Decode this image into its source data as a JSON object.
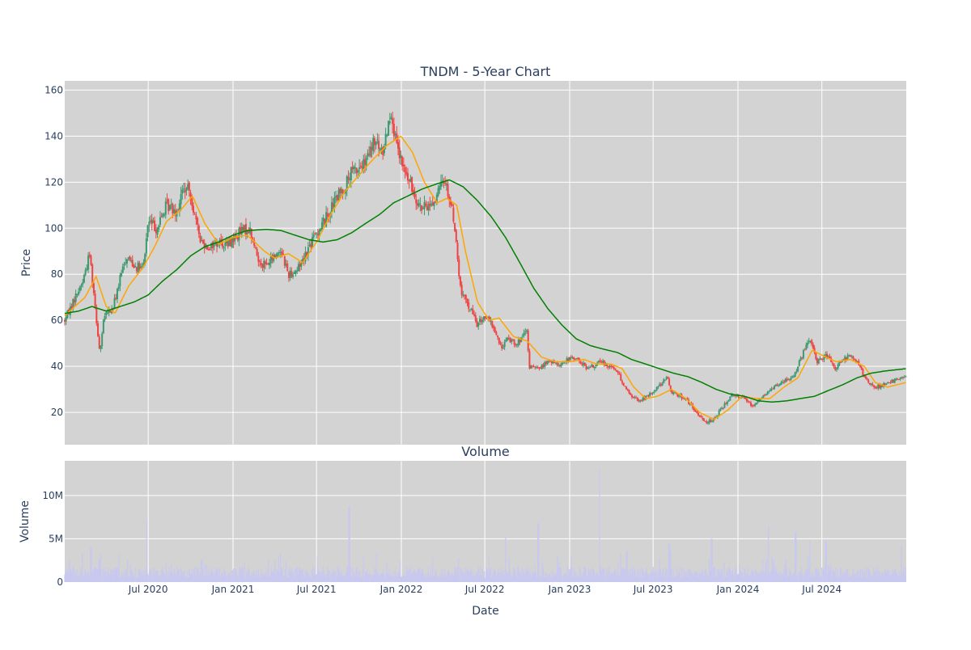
{
  "chart_data": [
    {
      "type": "candlestick",
      "title": "TNDM - 5-Year Chart",
      "ylabel": "Price",
      "ylim": [
        6,
        164
      ],
      "yticks": [
        20,
        40,
        60,
        80,
        100,
        120,
        140,
        160
      ],
      "xrange": [
        "2020-01-02",
        "2024-12-31"
      ],
      "grid": true,
      "legend": "none",
      "colors": {
        "up": "#3d9970",
        "down": "#ef4444",
        "sma50": "#ffa500",
        "sma200": "#008000",
        "plot_bg": "#d3d3d3"
      },
      "price_anchors": [
        [
          "2020-01-02",
          60
        ],
        [
          "2020-01-20",
          68
        ],
        [
          "2020-02-10",
          77
        ],
        [
          "2020-02-25",
          89
        ],
        [
          "2020-03-05",
          72
        ],
        [
          "2020-03-18",
          46
        ],
        [
          "2020-03-28",
          62
        ],
        [
          "2020-04-15",
          65
        ],
        [
          "2020-05-01",
          78
        ],
        [
          "2020-05-15",
          88
        ],
        [
          "2020-06-01",
          84
        ],
        [
          "2020-06-20",
          82
        ],
        [
          "2020-07-01",
          103
        ],
        [
          "2020-07-20",
          100
        ],
        [
          "2020-08-10",
          110
        ],
        [
          "2020-09-01",
          108
        ],
        [
          "2020-09-15",
          117
        ],
        [
          "2020-09-30",
          116
        ],
        [
          "2020-10-15",
          100
        ],
        [
          "2020-10-25",
          94
        ],
        [
          "2020-11-10",
          92
        ],
        [
          "2020-12-01",
          94
        ],
        [
          "2020-12-20",
          93
        ],
        [
          "2021-01-15",
          98
        ],
        [
          "2021-02-05",
          100
        ],
        [
          "2021-02-25",
          86
        ],
        [
          "2021-03-15",
          84
        ],
        [
          "2021-04-15",
          91
        ],
        [
          "2021-05-01",
          80
        ],
        [
          "2021-05-20",
          82
        ],
        [
          "2021-06-10",
          90
        ],
        [
          "2021-07-01",
          98
        ],
        [
          "2021-07-20",
          104
        ],
        [
          "2021-08-10",
          112
        ],
        [
          "2021-08-31",
          118
        ],
        [
          "2021-09-15",
          124
        ],
        [
          "2021-10-15",
          128
        ],
        [
          "2021-11-05",
          138
        ],
        [
          "2021-11-20",
          132
        ],
        [
          "2021-12-10",
          152
        ],
        [
          "2021-12-20",
          136
        ],
        [
          "2022-01-05",
          126
        ],
        [
          "2022-01-25",
          117
        ],
        [
          "2022-02-15",
          108
        ],
        [
          "2022-03-15",
          112
        ],
        [
          "2022-04-05",
          122
        ],
        [
          "2022-04-25",
          104
        ],
        [
          "2022-05-05",
          82
        ],
        [
          "2022-05-10",
          72
        ],
        [
          "2022-05-31",
          65
        ],
        [
          "2022-06-15",
          58
        ],
        [
          "2022-07-01",
          62
        ],
        [
          "2022-07-20",
          57
        ],
        [
          "2022-08-05",
          48
        ],
        [
          "2022-08-20",
          52
        ],
        [
          "2022-09-10",
          50
        ],
        [
          "2022-09-30",
          55
        ],
        [
          "2022-10-05",
          40
        ],
        [
          "2022-10-25",
          39
        ],
        [
          "2022-11-15",
          42
        ],
        [
          "2022-12-10",
          41
        ],
        [
          "2023-01-10",
          44
        ],
        [
          "2023-02-10",
          39
        ],
        [
          "2023-03-10",
          42
        ],
        [
          "2023-04-10",
          39
        ],
        [
          "2023-05-10",
          28
        ],
        [
          "2023-05-31",
          25
        ],
        [
          "2023-06-20",
          27
        ],
        [
          "2023-07-10",
          31
        ],
        [
          "2023-07-31",
          35
        ],
        [
          "2023-08-10",
          29
        ],
        [
          "2023-09-10",
          26
        ],
        [
          "2023-10-05",
          19
        ],
        [
          "2023-10-25",
          16
        ],
        [
          "2023-11-10",
          17
        ],
        [
          "2023-12-05",
          24
        ],
        [
          "2023-12-20",
          28
        ],
        [
          "2024-01-10",
          27
        ],
        [
          "2024-02-01",
          23
        ],
        [
          "2024-03-01",
          28
        ],
        [
          "2024-03-25",
          32
        ],
        [
          "2024-04-15",
          34
        ],
        [
          "2024-05-01",
          36
        ],
        [
          "2024-05-20",
          45
        ],
        [
          "2024-06-05",
          52
        ],
        [
          "2024-06-20",
          42
        ],
        [
          "2024-07-10",
          45
        ],
        [
          "2024-07-31",
          39
        ],
        [
          "2024-08-15",
          43
        ],
        [
          "2024-09-05",
          45
        ],
        [
          "2024-09-20",
          40
        ],
        [
          "2024-10-05",
          34
        ],
        [
          "2024-10-25",
          31
        ],
        [
          "2024-11-15",
          32
        ],
        [
          "2024-12-05",
          34
        ],
        [
          "2024-12-31",
          36
        ]
      ],
      "sma50_anchors": [
        [
          "2020-01-02",
          62
        ],
        [
          "2020-02-15",
          70
        ],
        [
          "2020-03-10",
          79
        ],
        [
          "2020-04-01",
          66
        ],
        [
          "2020-04-20",
          63
        ],
        [
          "2020-05-20",
          75
        ],
        [
          "2020-06-20",
          83
        ],
        [
          "2020-07-15",
          92
        ],
        [
          "2020-08-10",
          103
        ],
        [
          "2020-09-10",
          108
        ],
        [
          "2020-10-05",
          114
        ],
        [
          "2020-11-01",
          102
        ],
        [
          "2020-12-01",
          93
        ],
        [
          "2021-01-01",
          96
        ],
        [
          "2021-02-01",
          97
        ],
        [
          "2021-03-10",
          90
        ],
        [
          "2021-04-01",
          87
        ],
        [
          "2021-05-01",
          89
        ],
        [
          "2021-06-01",
          85
        ],
        [
          "2021-07-01",
          94
        ],
        [
          "2021-08-01",
          106
        ],
        [
          "2021-09-01",
          116
        ],
        [
          "2021-10-01",
          123
        ],
        [
          "2021-11-01",
          130
        ],
        [
          "2021-12-01",
          136
        ],
        [
          "2021-12-31",
          140
        ],
        [
          "2022-01-25",
          133
        ],
        [
          "2022-02-20",
          120
        ],
        [
          "2022-03-20",
          111
        ],
        [
          "2022-04-10",
          113
        ],
        [
          "2022-05-01",
          110
        ],
        [
          "2022-05-20",
          90
        ],
        [
          "2022-06-15",
          68
        ],
        [
          "2022-07-10",
          60
        ],
        [
          "2022-08-01",
          61
        ],
        [
          "2022-09-01",
          53
        ],
        [
          "2022-10-01",
          51
        ],
        [
          "2022-11-01",
          44
        ],
        [
          "2022-12-01",
          42
        ],
        [
          "2023-01-01",
          42
        ],
        [
          "2023-02-01",
          43
        ],
        [
          "2023-03-01",
          41
        ],
        [
          "2023-04-01",
          41
        ],
        [
          "2023-04-25",
          39
        ],
        [
          "2023-05-20",
          31
        ],
        [
          "2023-06-15",
          26
        ],
        [
          "2023-07-10",
          27
        ],
        [
          "2023-08-10",
          30
        ],
        [
          "2023-09-10",
          26
        ],
        [
          "2023-10-10",
          20
        ],
        [
          "2023-11-10",
          17
        ],
        [
          "2023-12-10",
          21
        ],
        [
          "2024-01-10",
          27
        ],
        [
          "2024-02-10",
          26
        ],
        [
          "2024-03-10",
          26
        ],
        [
          "2024-04-10",
          31
        ],
        [
          "2024-05-10",
          35
        ],
        [
          "2024-06-10",
          47
        ],
        [
          "2024-07-10",
          44
        ],
        [
          "2024-08-01",
          42
        ],
        [
          "2024-09-01",
          43
        ],
        [
          "2024-10-01",
          40
        ],
        [
          "2024-10-25",
          33
        ],
        [
          "2024-11-20",
          31
        ],
        [
          "2024-12-31",
          33
        ]
      ],
      "sma200_anchors": [
        [
          "2020-01-02",
          63
        ],
        [
          "2020-02-01",
          64
        ],
        [
          "2020-03-01",
          66
        ],
        [
          "2020-04-01",
          64
        ],
        [
          "2020-05-01",
          66
        ],
        [
          "2020-06-01",
          68
        ],
        [
          "2020-07-01",
          71
        ],
        [
          "2020-08-01",
          77
        ],
        [
          "2020-09-01",
          82
        ],
        [
          "2020-10-01",
          88
        ],
        [
          "2020-11-01",
          92
        ],
        [
          "2020-12-01",
          94
        ],
        [
          "2021-01-01",
          97
        ],
        [
          "2021-02-01",
          99
        ],
        [
          "2021-03-15",
          99.5
        ],
        [
          "2021-04-15",
          99
        ],
        [
          "2021-05-15",
          97
        ],
        [
          "2021-06-15",
          95
        ],
        [
          "2021-07-15",
          94
        ],
        [
          "2021-08-15",
          95
        ],
        [
          "2021-09-15",
          98
        ],
        [
          "2021-10-15",
          102
        ],
        [
          "2021-11-15",
          106
        ],
        [
          "2021-12-15",
          111
        ],
        [
          "2022-01-15",
          114
        ],
        [
          "2022-02-15",
          117
        ],
        [
          "2022-03-15",
          119
        ],
        [
          "2022-04-15",
          121
        ],
        [
          "2022-05-15",
          118
        ],
        [
          "2022-06-15",
          112
        ],
        [
          "2022-07-15",
          105
        ],
        [
          "2022-08-15",
          96
        ],
        [
          "2022-09-15",
          85
        ],
        [
          "2022-10-15",
          74
        ],
        [
          "2022-11-15",
          65
        ],
        [
          "2022-12-15",
          58
        ],
        [
          "2023-01-15",
          52
        ],
        [
          "2023-02-15",
          49
        ],
        [
          "2023-03-15",
          47.5
        ],
        [
          "2023-04-15",
          46
        ],
        [
          "2023-05-15",
          43
        ],
        [
          "2023-06-15",
          41
        ],
        [
          "2023-07-15",
          39
        ],
        [
          "2023-08-15",
          37
        ],
        [
          "2023-09-15",
          35.5
        ],
        [
          "2023-10-15",
          33
        ],
        [
          "2023-11-15",
          30
        ],
        [
          "2023-12-15",
          28
        ],
        [
          "2024-01-15",
          27
        ],
        [
          "2024-02-15",
          25
        ],
        [
          "2024-03-15",
          24.5
        ],
        [
          "2024-04-15",
          25
        ],
        [
          "2024-05-15",
          26
        ],
        [
          "2024-06-15",
          27
        ],
        [
          "2024-07-15",
          29.5
        ],
        [
          "2024-08-15",
          32
        ],
        [
          "2024-09-15",
          35
        ],
        [
          "2024-10-15",
          37
        ],
        [
          "2024-11-15",
          38
        ],
        [
          "2024-12-31",
          39
        ]
      ]
    },
    {
      "type": "bar",
      "title": "Volume",
      "xlabel": "Date",
      "ylabel": "Volume",
      "ylim": [
        0,
        14000000
      ],
      "yticks": [
        0,
        5000000,
        10000000
      ],
      "ytick_labels": [
        "0",
        "5M",
        "10M"
      ],
      "xticks": [
        "2020-07-01",
        "2021-01-01",
        "2021-07-01",
        "2022-01-01",
        "2022-07-01",
        "2023-01-01",
        "2023-07-01",
        "2024-01-01",
        "2024-07-01"
      ],
      "xtick_labels": [
        "Jul 2020",
        "Jan 2021",
        "Jul 2021",
        "Jan 2022",
        "Jul 2022",
        "Jan 2023",
        "Jul 2023",
        "Jan 2024",
        "Jul 2024"
      ],
      "grid": true,
      "color": "#c8c8f0",
      "volume_spikes": [
        [
          "2020-02-28",
          4000000
        ],
        [
          "2020-06-28",
          7200000
        ],
        [
          "2020-10-25",
          2600000
        ],
        [
          "2021-09-10",
          8700000
        ],
        [
          "2022-05-05",
          2800000
        ],
        [
          "2022-08-15",
          5200000
        ],
        [
          "2022-10-25",
          6800000
        ],
        [
          "2023-03-07",
          13000000
        ],
        [
          "2023-05-05",
          3600000
        ],
        [
          "2023-08-05",
          4400000
        ],
        [
          "2023-11-05",
          5000000
        ],
        [
          "2024-03-07",
          6500000
        ],
        [
          "2024-05-05",
          5800000
        ],
        [
          "2024-06-05",
          4800000
        ],
        [
          "2024-07-10",
          4700000
        ],
        [
          "2024-12-20",
          4200000
        ]
      ]
    }
  ]
}
